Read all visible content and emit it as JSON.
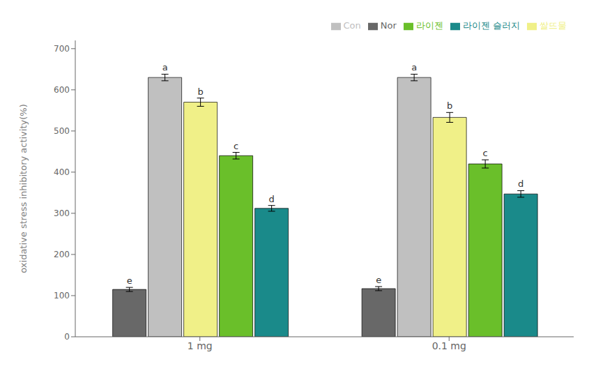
{
  "chart_data": {
    "type": "bar",
    "categories": [
      "1 mg",
      "0.1 mg"
    ],
    "series": [
      {
        "name": "Nor",
        "color": "#686868",
        "values": [
          115,
          117
        ],
        "errors": [
          5,
          5
        ],
        "letters": [
          "e",
          "e"
        ]
      },
      {
        "name": "Con",
        "color": "#c0c0c0",
        "values": [
          630,
          630
        ],
        "errors": [
          8,
          8
        ],
        "letters": [
          "a",
          "a"
        ]
      },
      {
        "name": "쌀뜨물",
        "color": "#f0f088",
        "values": [
          570,
          533
        ],
        "errors": [
          10,
          12
        ],
        "letters": [
          "b",
          "b"
        ]
      },
      {
        "name": "라이젠",
        "color": "#6abf2a",
        "values": [
          440,
          420
        ],
        "errors": [
          8,
          10
        ],
        "letters": [
          "c",
          "c"
        ]
      },
      {
        "name": "라이젠 슬러지",
        "color": "#1a8a8a",
        "values": [
          312,
          347
        ],
        "errors": [
          7,
          8
        ],
        "letters": [
          "d",
          "d"
        ]
      }
    ],
    "ylabel": "oxidative stress inhibitory activity(%)",
    "ylim": [
      0,
      720
    ],
    "yticks": [
      0,
      100,
      200,
      300,
      400,
      500,
      600,
      700
    ],
    "grid": false,
    "legend": "upper right"
  }
}
